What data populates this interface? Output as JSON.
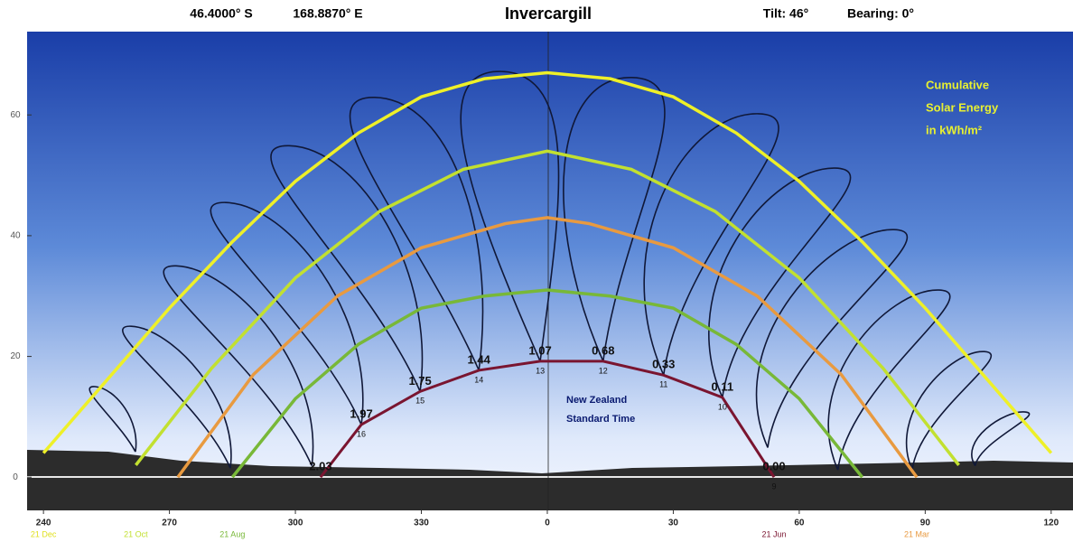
{
  "chart_data": {
    "type": "line",
    "latitude": "46.4000° S",
    "longitude": "168.8870° E",
    "title": "Invercargill",
    "tilt": "Tilt:  46°",
    "bearing": "Bearing:  0°",
    "annotation": [
      "Cumulative",
      "Solar Energy",
      "in kWh/m²"
    ],
    "time_note": [
      "New Zealand",
      "Standard Time"
    ],
    "xlim": [
      236.1,
      485.2
    ],
    "ylim": [
      -5.5,
      73.8
    ],
    "xticks": [
      240,
      270,
      300,
      330,
      {
        "value": 360,
        "label": "0"
      },
      {
        "value": 390,
        "label": "30"
      },
      {
        "value": 420,
        "label": "60"
      },
      {
        "value": 450,
        "label": "90"
      },
      {
        "value": 480,
        "label": "120"
      }
    ],
    "yticks": [
      0,
      20,
      40,
      60
    ],
    "series": [
      {
        "name": "21 Dec",
        "color": "#eef028",
        "label_at": "start",
        "x": [
          240,
          255,
          270,
          285,
          300,
          315,
          330,
          345,
          360,
          375,
          390,
          405,
          420,
          435,
          450,
          465,
          480
        ],
        "y": [
          4,
          16,
          28,
          39,
          49,
          57,
          63,
          66,
          67,
          66,
          63,
          57,
          49,
          39,
          28,
          16,
          4
        ]
      },
      {
        "name": "21 Oct",
        "color": "#c2e030",
        "label_at": "start",
        "x": [
          262,
          280,
          300,
          320,
          340,
          360,
          380,
          400,
          420,
          440,
          458
        ],
        "y": [
          2,
          18,
          33,
          44,
          51,
          54,
          51,
          44,
          33,
          18,
          2
        ]
      },
      {
        "name": "21 Mar",
        "color": "#e89a40",
        "label_at": "end",
        "x": [
          272,
          290,
          310,
          330,
          350,
          360,
          370,
          390,
          410,
          430,
          448
        ],
        "y": [
          0,
          17,
          30,
          38,
          42,
          43,
          42,
          38,
          30,
          17,
          0
        ]
      },
      {
        "name": "21 Aug",
        "color": "#78b838",
        "label_at": "start",
        "x": [
          285,
          300,
          315,
          330,
          345,
          360,
          375,
          390,
          405,
          420,
          435
        ],
        "y": [
          0,
          13,
          22,
          28,
          30,
          31,
          30,
          28,
          22,
          13,
          0
        ]
      },
      {
        "name": "21 Jun",
        "color": "#7a1530",
        "label_at": "end",
        "x": [
          306,
          315.7,
          329.7,
          343.7,
          358.3,
          373.3,
          387.7,
          401.7,
          414
        ],
        "y": [
          0,
          8.7,
          14.2,
          17.7,
          19.2,
          19.2,
          16.9,
          13.2,
          0
        ],
        "point_labels": [
          "2.03",
          "1.97",
          "1.75",
          "1.44",
          "1.07",
          "0.68",
          "0.33",
          "0.11",
          "0.00"
        ],
        "hours": [
          null,
          16,
          15,
          14,
          13,
          12,
          11,
          10,
          9
        ]
      }
    ],
    "loops": {
      "color": "#101838",
      "top_x": [
        252.3,
        260.9,
        271.6,
        283.4,
        298.5,
        318.9,
        349,
        380.2,
        410.3,
        428.6,
        442.6,
        453.3,
        464.1,
        473.8
      ],
      "top_y": [
        14.4,
        24.4,
        34.4,
        44.9,
        54.3,
        62.3,
        66.6,
        65.6,
        59.6,
        50.6,
        40.4,
        30.4,
        20.2,
        10.2
      ],
      "bottom_x": [
        261.9,
        284.5,
        303.9,
        315.7,
        329.7,
        343.7,
        358.3,
        373.3,
        387.7,
        401.7,
        412.5,
        429.2,
        446.9,
        461.9
      ],
      "bottom_y": [
        4.2,
        1.5,
        1.9,
        8.7,
        14.2,
        17.7,
        19.2,
        19.2,
        16.9,
        13.2,
        4.9,
        1.2,
        1.2,
        1.9
      ]
    }
  }
}
